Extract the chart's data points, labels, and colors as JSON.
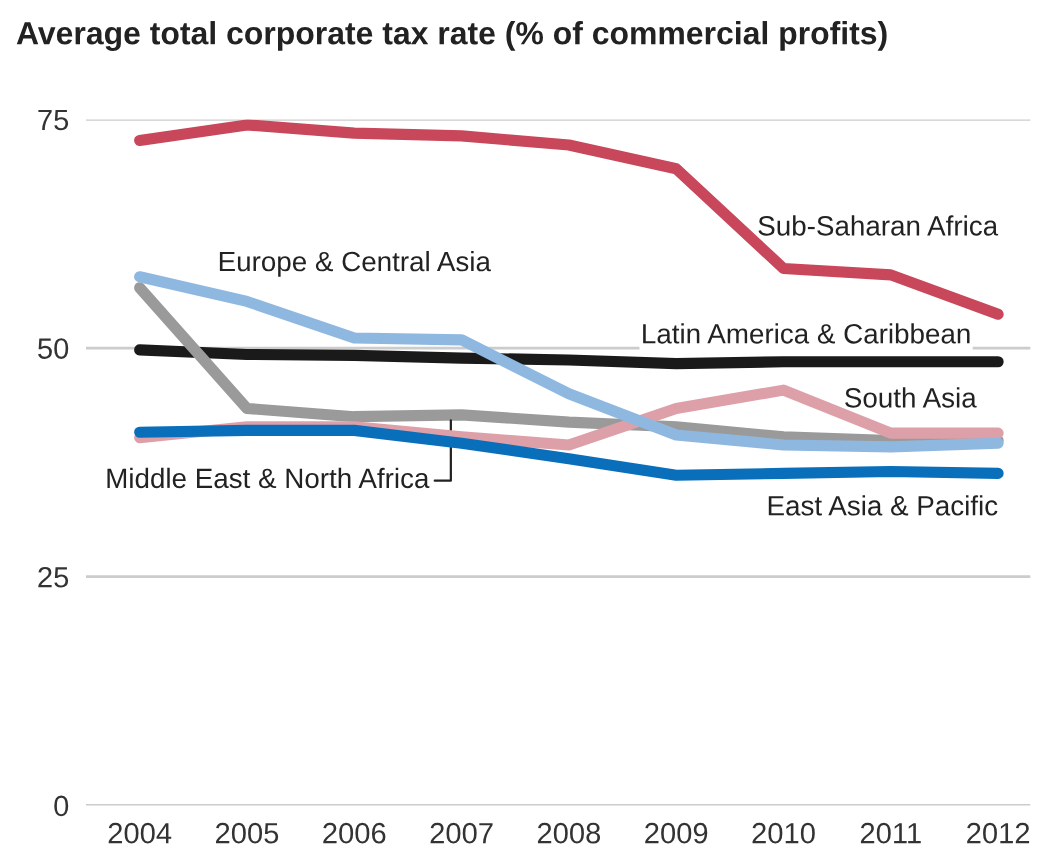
{
  "chart_data": {
    "type": "line",
    "title": "Average total corporate tax rate (% of commercial profits)",
    "x": [
      2004,
      2005,
      2006,
      2007,
      2008,
      2009,
      2010,
      2011,
      2012
    ],
    "xlim": [
      2003.5,
      2012.3
    ],
    "xticks": [
      2004,
      2005,
      2006,
      2007,
      2008,
      2009,
      2010,
      2011,
      2012
    ],
    "ylim": [
      0,
      75
    ],
    "yticks": [
      0,
      25,
      50,
      75
    ],
    "grid": "y",
    "legend": false,
    "line_style": "solid",
    "marker": "none",
    "series": [
      {
        "name": "Sub-Saharan Africa",
        "color": "#c8475a",
        "values": [
          72.7,
          74.4,
          73.5,
          73.2,
          72.2,
          69.6,
          58.7,
          58.0,
          53.7
        ]
      },
      {
        "name": "Latin America & Caribbean",
        "color": "#1a1a1a",
        "values": [
          49.8,
          49.3,
          49.2,
          48.9,
          48.7,
          48.3,
          48.5,
          48.5,
          48.5
        ]
      },
      {
        "name": "Middle East & North Africa",
        "color": "#9a9a9a",
        "values": [
          56.6,
          43.4,
          42.5,
          42.7,
          41.9,
          41.4,
          40.3,
          39.9,
          39.9
        ]
      },
      {
        "name": "South Asia",
        "color": "#dea0a8",
        "values": [
          40.2,
          41.4,
          41.4,
          40.3,
          39.4,
          43.4,
          45.4,
          40.7,
          40.7
        ]
      },
      {
        "name": "Europe & Central Asia",
        "color": "#8fb8e0",
        "values": [
          57.8,
          55.1,
          51.1,
          50.9,
          45.0,
          40.5,
          39.4,
          39.2,
          39.6
        ]
      },
      {
        "name": "East Asia & Pacific",
        "color": "#0a6fba",
        "values": [
          40.8,
          41.0,
          41.0,
          39.6,
          37.9,
          36.1,
          36.3,
          36.5,
          36.3
        ]
      }
    ]
  }
}
